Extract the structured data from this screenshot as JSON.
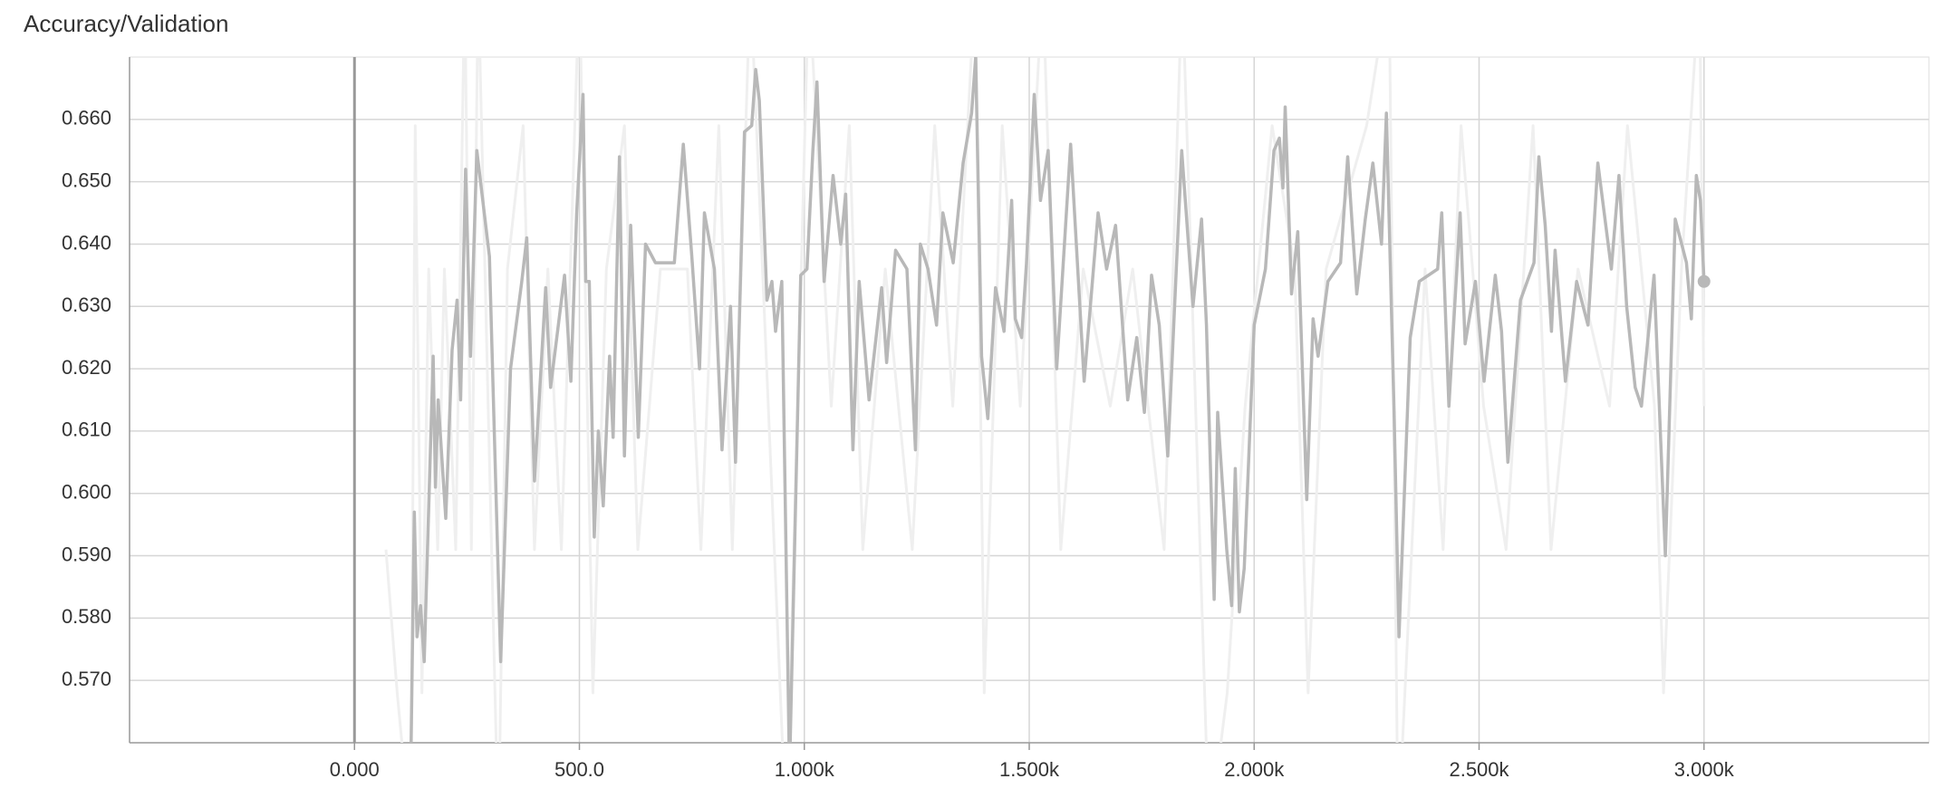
{
  "chart_data": {
    "type": "line",
    "title": "Accuracy/Validation",
    "xlim": [
      -500,
      3500
    ],
    "ylim": [
      0.56,
      0.67
    ],
    "xticks": [
      {
        "value": 0,
        "label": "0.000"
      },
      {
        "value": 500,
        "label": "500.0"
      },
      {
        "value": 1000,
        "label": "1.000k"
      },
      {
        "value": 1500,
        "label": "1.500k"
      },
      {
        "value": 2000,
        "label": "2.000k"
      },
      {
        "value": 2500,
        "label": "2.500k"
      },
      {
        "value": 3000,
        "label": "3.000k"
      }
    ],
    "yticks": [
      {
        "value": 0.57,
        "label": "0.570"
      },
      {
        "value": 0.58,
        "label": "0.580"
      },
      {
        "value": 0.59,
        "label": "0.590"
      },
      {
        "value": 0.6,
        "label": "0.600"
      },
      {
        "value": 0.61,
        "label": "0.610"
      },
      {
        "value": 0.62,
        "label": "0.620"
      },
      {
        "value": 0.63,
        "label": "0.630"
      },
      {
        "value": 0.64,
        "label": "0.640"
      },
      {
        "value": 0.65,
        "label": "0.650"
      },
      {
        "value": 0.66,
        "label": "0.660"
      }
    ],
    "grid": true,
    "series": [
      {
        "color": "#efefef",
        "x": [
          70,
          95,
          125,
          135,
          150,
          165,
          185,
          200,
          225,
          245,
          260,
          275,
          290,
          320,
          340,
          375,
          400,
          430,
          460,
          500,
          530,
          560,
          600,
          630,
          680,
          740,
          770,
          810,
          840,
          880,
          920,
          960,
          1010,
          1060,
          1100,
          1130,
          1180,
          1240,
          1290,
          1330,
          1380,
          1400,
          1440,
          1480,
          1530,
          1570,
          1620,
          1680,
          1730,
          1800,
          1840,
          1900,
          1940,
          1980,
          2040,
          2090,
          2120,
          2160,
          2250,
          2300,
          2320,
          2380,
          2420,
          2460,
          2510,
          2560,
          2620,
          2660,
          2720,
          2790,
          2830,
          2890,
          2910,
          2950,
          2990,
          3000
        ],
        "values": [
          0.591,
          0.568,
          0.545,
          0.659,
          0.568,
          0.636,
          0.591,
          0.636,
          0.591,
          0.682,
          0.591,
          0.682,
          0.636,
          0.545,
          0.636,
          0.659,
          0.591,
          0.636,
          0.591,
          0.682,
          0.568,
          0.636,
          0.659,
          0.591,
          0.636,
          0.636,
          0.591,
          0.659,
          0.591,
          0.682,
          0.614,
          0.545,
          0.682,
          0.614,
          0.659,
          0.591,
          0.636,
          0.591,
          0.659,
          0.614,
          0.682,
          0.568,
          0.659,
          0.614,
          0.682,
          0.591,
          0.636,
          0.614,
          0.636,
          0.591,
          0.682,
          0.545,
          0.568,
          0.614,
          0.659,
          0.636,
          0.568,
          0.636,
          0.659,
          0.682,
          0.545,
          0.636,
          0.591,
          0.659,
          0.614,
          0.591,
          0.659,
          0.591,
          0.636,
          0.614,
          0.659,
          0.614,
          0.568,
          0.636,
          0.682,
          0.614
        ]
      },
      {
        "color": "#b8b8b8",
        "x": [
          125,
          133,
          139,
          147,
          155,
          175,
          180,
          186,
          203,
          217,
          228,
          236,
          247,
          258,
          272,
          300,
          325,
          347,
          372,
          383,
          400,
          425,
          436,
          467,
          481,
          494,
          508,
          514,
          522,
          533,
          542,
          553,
          567,
          575,
          589,
          600,
          614,
          631,
          647,
          669,
          711,
          731,
          750,
          767,
          778,
          800,
          817,
          836,
          847,
          867,
          883,
          892,
          900,
          917,
          928,
          936,
          950,
          967,
          992,
          1006,
          1019,
          1028,
          1044,
          1064,
          1081,
          1092,
          1108,
          1122,
          1144,
          1172,
          1183,
          1203,
          1228,
          1247,
          1258,
          1275,
          1294,
          1308,
          1331,
          1353,
          1372,
          1381,
          1394,
          1408,
          1425,
          1444,
          1461,
          1469,
          1483,
          1494,
          1511,
          1525,
          1542,
          1561,
          1592,
          1622,
          1653,
          1672,
          1692,
          1719,
          1739,
          1756,
          1772,
          1789,
          1808,
          1839,
          1864,
          1883,
          1894,
          1911,
          1919,
          1939,
          1950,
          1958,
          1967,
          1978,
          2000,
          2025,
          2044,
          2056,
          2064,
          2069,
          2083,
          2097,
          2117,
          2131,
          2142,
          2164,
          2192,
          2208,
          2228,
          2247,
          2264,
          2283,
          2294,
          2311,
          2322,
          2347,
          2367,
          2408,
          2417,
          2433,
          2458,
          2469,
          2492,
          2511,
          2536,
          2550,
          2564,
          2592,
          2622,
          2633,
          2647,
          2661,
          2669,
          2692,
          2717,
          2742,
          2764,
          2794,
          2811,
          2828,
          2847,
          2861,
          2889,
          2914,
          2936,
          2961,
          2972,
          2983,
          2992,
          3000
        ],
        "values": [
          0.555,
          0.597,
          0.577,
          0.582,
          0.573,
          0.622,
          0.601,
          0.615,
          0.596,
          0.623,
          0.631,
          0.615,
          0.652,
          0.622,
          0.655,
          0.638,
          0.573,
          0.62,
          0.634,
          0.641,
          0.602,
          0.633,
          0.617,
          0.635,
          0.618,
          0.645,
          0.664,
          0.634,
          0.634,
          0.593,
          0.61,
          0.598,
          0.622,
          0.609,
          0.654,
          0.606,
          0.643,
          0.609,
          0.64,
          0.637,
          0.637,
          0.656,
          0.638,
          0.62,
          0.645,
          0.636,
          0.607,
          0.63,
          0.605,
          0.658,
          0.659,
          0.668,
          0.663,
          0.631,
          0.634,
          0.626,
          0.634,
          0.555,
          0.635,
          0.636,
          0.655,
          0.666,
          0.634,
          0.651,
          0.64,
          0.648,
          0.607,
          0.634,
          0.615,
          0.633,
          0.621,
          0.639,
          0.636,
          0.607,
          0.64,
          0.636,
          0.627,
          0.645,
          0.637,
          0.653,
          0.661,
          0.67,
          0.622,
          0.612,
          0.633,
          0.626,
          0.647,
          0.628,
          0.625,
          0.637,
          0.664,
          0.647,
          0.655,
          0.62,
          0.656,
          0.618,
          0.645,
          0.636,
          0.643,
          0.615,
          0.625,
          0.613,
          0.635,
          0.627,
          0.606,
          0.655,
          0.63,
          0.644,
          0.627,
          0.583,
          0.613,
          0.591,
          0.582,
          0.604,
          0.581,
          0.588,
          0.627,
          0.636,
          0.655,
          0.657,
          0.649,
          0.662,
          0.632,
          0.642,
          0.599,
          0.628,
          0.622,
          0.634,
          0.637,
          0.654,
          0.632,
          0.644,
          0.653,
          0.64,
          0.661,
          0.613,
          0.577,
          0.625,
          0.634,
          0.636,
          0.645,
          0.614,
          0.645,
          0.624,
          0.634,
          0.618,
          0.635,
          0.626,
          0.605,
          0.631,
          0.637,
          0.654,
          0.643,
          0.626,
          0.639,
          0.618,
          0.634,
          0.627,
          0.653,
          0.636,
          0.651,
          0.63,
          0.617,
          0.614,
          0.635,
          0.59,
          0.644,
          0.637,
          0.628,
          0.651,
          0.647,
          0.634
        ]
      }
    ]
  }
}
